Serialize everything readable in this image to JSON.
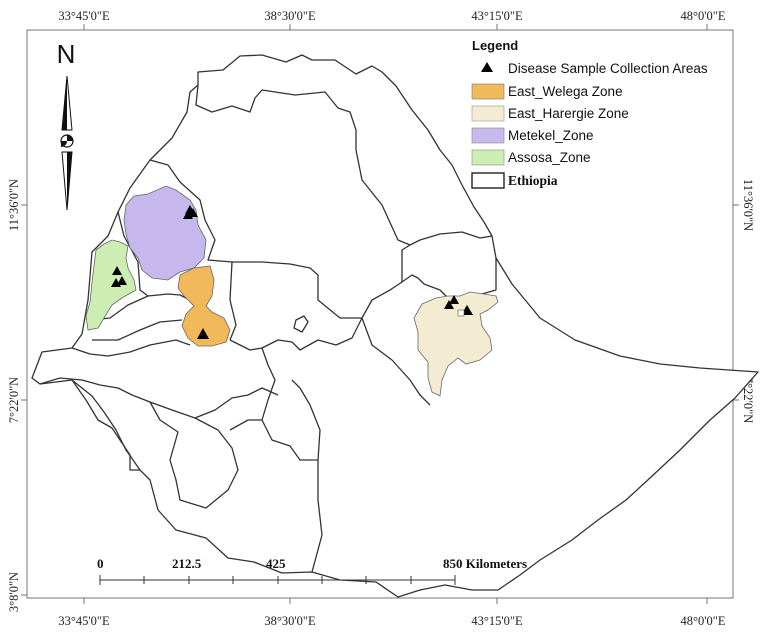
{
  "map": {
    "top_longitude_labels": [
      "33°45'0\"E",
      "38°30'0\"E",
      "43°15'0\"E",
      "48°0'0\"E"
    ],
    "bottom_longitude_labels": [
      "33°45'0\"E",
      "38°30'0\"E",
      "43°15'0\"E",
      "48°0'0\"E"
    ],
    "left_latitude_labels": [
      "11°36'0\"N",
      "7°22'0\"N",
      "3°8'0\"N"
    ],
    "right_latitude_labels": [
      "11°36'0\"N",
      "7°22'0\"N"
    ]
  },
  "north_arrow": {
    "letter": "N"
  },
  "legend": {
    "title": "Legend",
    "items": [
      {
        "label": "Disease Sample Collection Areas",
        "symbol": "triangle",
        "color": "#000000"
      },
      {
        "label": "East_Welega Zone",
        "symbol": "fill",
        "color": "#f2b95a"
      },
      {
        "label": "East_Harergie Zone",
        "symbol": "fill",
        "color": "#f3ecd2"
      },
      {
        "label": "Metekel_Zone",
        "symbol": "fill",
        "color": "#c6b8ec"
      },
      {
        "label": "Assosa_Zone",
        "symbol": "fill",
        "color": "#cdeeb2"
      },
      {
        "label": "Ethiopia",
        "symbol": "outline",
        "color": "#ffffff"
      }
    ]
  },
  "scale_bar": {
    "ticks": [
      "0",
      "212.5",
      "425",
      "850 Kilometers"
    ]
  },
  "colors": {
    "outline": "#333333",
    "east_welega": "#f2b95a",
    "east_harergie": "#f3ecd2",
    "metekel": "#c6b8ec",
    "assosa": "#cdeeb2"
  }
}
